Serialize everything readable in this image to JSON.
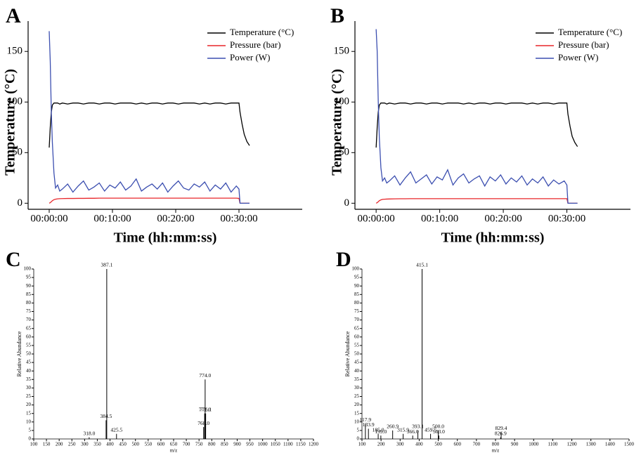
{
  "chart_data": [
    {
      "type": "line",
      "label": "A",
      "xlabel": "Time (hh:mm:ss)",
      "ylabel": "Temperature (°C)",
      "x": [
        0,
        10,
        20,
        30,
        45,
        60,
        80,
        100,
        125,
        175,
        225,
        275,
        325,
        375,
        425,
        475,
        525,
        575,
        625,
        675,
        725,
        775,
        825,
        875,
        925,
        975,
        1025,
        1075,
        1125,
        1175,
        1225,
        1275,
        1325,
        1375,
        1425,
        1475,
        1525,
        1575,
        1625,
        1675,
        1725,
        1775,
        1800,
        1810,
        1830,
        1850,
        1875,
        1900
      ],
      "xlim": [
        -200,
        2400
      ],
      "xticks": [
        {
          "value": 0,
          "label": "00:00:00"
        },
        {
          "value": 600,
          "label": "00:10:00"
        },
        {
          "value": 1200,
          "label": "00:20:00"
        },
        {
          "value": 1800,
          "label": "00:30:00"
        }
      ],
      "ylim": [
        -6,
        180
      ],
      "yticks": [
        0,
        50,
        100,
        150
      ],
      "legend": "upper right",
      "series": [
        {
          "name": "Temperature (°C)",
          "color": "#000000",
          "values": [
            55,
            75,
            90,
            97,
            99,
            99,
            99,
            98,
            99,
            98,
            99,
            99,
            98,
            99,
            99,
            98,
            99,
            99,
            98,
            99,
            99,
            99,
            98,
            99,
            98,
            99,
            99,
            98,
            99,
            99,
            98,
            99,
            99,
            99,
            98,
            99,
            98,
            99,
            99,
            98,
            99,
            99,
            99,
            90,
            78,
            68,
            61,
            57
          ]
        },
        {
          "name": "Pressure (bar)",
          "color": "#e8262a",
          "values": [
            0,
            0.5,
            1.5,
            2.5,
            3.5,
            4,
            4.3,
            4.5,
            4.6,
            4.7,
            4.7,
            4.8,
            4.8,
            4.9,
            4.9,
            5,
            5,
            5,
            5,
            5,
            5,
            5,
            5,
            5,
            5,
            5,
            5,
            5,
            5,
            5,
            5,
            5,
            5,
            5,
            5,
            5,
            5,
            5,
            5,
            5,
            5,
            5,
            4.8,
            0,
            0,
            0,
            0,
            0
          ]
        },
        {
          "name": "Power (W)",
          "color": "#3c4fb0",
          "values": [
            170,
            140,
            90,
            60,
            30,
            15,
            18,
            12,
            14,
            19,
            11,
            17,
            22,
            13,
            16,
            20,
            12,
            18,
            15,
            21,
            13,
            17,
            24,
            12,
            16,
            19,
            14,
            20,
            11,
            17,
            22,
            15,
            13,
            19,
            16,
            21,
            12,
            18,
            14,
            20,
            11,
            17,
            14,
            0,
            0,
            0,
            0,
            0
          ]
        }
      ]
    },
    {
      "type": "line",
      "label": "B",
      "xlabel": "Time (hh:mm:ss)",
      "ylabel": "Temperature (°C)",
      "x": [
        0,
        10,
        20,
        30,
        45,
        60,
        80,
        100,
        125,
        175,
        225,
        275,
        325,
        375,
        425,
        475,
        525,
        575,
        625,
        675,
        725,
        775,
        825,
        875,
        925,
        975,
        1025,
        1075,
        1125,
        1175,
        1225,
        1275,
        1325,
        1375,
        1425,
        1475,
        1525,
        1575,
        1625,
        1675,
        1725,
        1775,
        1800,
        1810,
        1830,
        1850,
        1875,
        1900
      ],
      "xlim": [
        -200,
        2400
      ],
      "xticks": [
        {
          "value": 0,
          "label": "00:00:00"
        },
        {
          "value": 600,
          "label": "00:10:00"
        },
        {
          "value": 1200,
          "label": "00:20:00"
        },
        {
          "value": 1800,
          "label": "00:30:00"
        }
      ],
      "ylim": [
        -6,
        180
      ],
      "yticks": [
        0,
        50,
        100,
        150
      ],
      "legend": "upper right",
      "series": [
        {
          "name": "Temperature (°C)",
          "color": "#000000",
          "values": [
            55,
            75,
            90,
            97,
            99,
            99,
            99,
            98,
            99,
            98,
            99,
            99,
            98,
            99,
            99,
            98,
            99,
            99,
            98,
            99,
            99,
            99,
            98,
            99,
            98,
            99,
            99,
            98,
            99,
            99,
            98,
            99,
            99,
            99,
            98,
            99,
            98,
            99,
            99,
            98,
            99,
            99,
            99,
            88,
            76,
            66,
            60,
            56
          ]
        },
        {
          "name": "Pressure (bar)",
          "color": "#e8262a",
          "values": [
            0,
            0.5,
            1.5,
            2.5,
            3.3,
            3.8,
            4,
            4.1,
            4.2,
            4.3,
            4.4,
            4.4,
            4.5,
            4.5,
            4.5,
            4.5,
            4.5,
            4.5,
            4.5,
            4.5,
            4.5,
            4.5,
            4.5,
            4.5,
            4.5,
            4.5,
            4.5,
            4.5,
            4.5,
            4.5,
            4.5,
            4.5,
            4.5,
            4.5,
            4.5,
            4.5,
            4.5,
            4.5,
            4.5,
            4.5,
            4.5,
            4.5,
            4.5,
            0,
            0,
            0,
            0,
            0
          ]
        },
        {
          "name": "Power (W)",
          "color": "#3c4fb0",
          "values": [
            172,
            150,
            100,
            65,
            35,
            22,
            25,
            20,
            22,
            27,
            18,
            25,
            31,
            20,
            24,
            28,
            19,
            26,
            23,
            33,
            18,
            25,
            29,
            20,
            24,
            27,
            17,
            26,
            22,
            28,
            19,
            25,
            21,
            27,
            18,
            24,
            20,
            26,
            17,
            23,
            19,
            22,
            18,
            0,
            0,
            0,
            0,
            0
          ]
        }
      ]
    },
    {
      "type": "stem",
      "label": "C",
      "xlabel": "m/z",
      "ylabel": "Relative Abundance",
      "color": "#000000",
      "x": [
        318.0,
        384.5,
        387.1,
        425.5,
        768.0,
        772.0,
        774.0,
        776.1
      ],
      "x_labels": [
        "318.0",
        "384.5",
        "387.1",
        "425.5",
        "768.0",
        "772.0",
        "774.0",
        "776.1"
      ],
      "values": [
        1,
        11,
        100,
        3,
        7,
        15,
        35,
        15
      ],
      "xlim": [
        100,
        1200
      ],
      "xticks": [
        100,
        150,
        200,
        250,
        300,
        350,
        400,
        450,
        500,
        550,
        600,
        650,
        700,
        750,
        800,
        850,
        900,
        950,
        1000,
        1050,
        1100,
        1150,
        1200
      ],
      "ylim": [
        0,
        100
      ],
      "yticks": [
        0,
        5,
        10,
        15,
        20,
        25,
        30,
        35,
        40,
        45,
        50,
        55,
        60,
        65,
        70,
        75,
        80,
        85,
        90,
        95,
        100
      ]
    },
    {
      "type": "stem",
      "label": "D",
      "xlabel": "m/z",
      "ylabel": "Relative Abundance",
      "color": "#000000",
      "x": [
        117.9,
        133.9,
        185.0,
        199.0,
        260.9,
        315.9,
        366.0,
        393.1,
        415.1,
        459.5,
        500.0,
        503.0,
        826.9,
        829.4
      ],
      "x_labels": [
        "117.9",
        "133.9",
        "185.0",
        "199.0",
        "260.9",
        "315.9",
        "366.0",
        "393.1",
        "415.1",
        "459.5",
        "500.0",
        "503.0",
        "826.9",
        "829.4"
      ],
      "values": [
        9,
        6,
        3,
        2,
        5,
        3,
        2,
        5,
        100,
        3,
        5,
        2,
        1,
        4
      ],
      "xlim": [
        100,
        1500
      ],
      "xticks": [
        100,
        200,
        300,
        400,
        500,
        600,
        700,
        800,
        900,
        1000,
        1100,
        1200,
        1300,
        1400,
        1500
      ],
      "ylim": [
        0,
        100
      ],
      "yticks": [
        0,
        5,
        10,
        15,
        20,
        25,
        30,
        35,
        40,
        45,
        50,
        55,
        60,
        65,
        70,
        75,
        80,
        85,
        90,
        95,
        100
      ]
    }
  ]
}
